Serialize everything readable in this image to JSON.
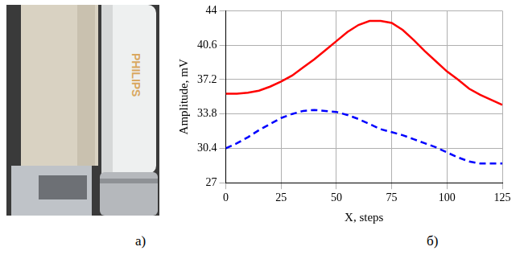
{
  "panel_labels": [
    "а)",
    "б)"
  ],
  "photo": {
    "text": "PHILIPS"
  },
  "chart_data": {
    "type": "line",
    "x_label": "X, steps",
    "y_label": "Amplitude, mV",
    "x": [
      0,
      5,
      10,
      15,
      20,
      25,
      30,
      35,
      40,
      45,
      50,
      55,
      60,
      65,
      70,
      75,
      80,
      85,
      90,
      95,
      100,
      105,
      110,
      115,
      120,
      125
    ],
    "series": [
      {
        "color": "#ff0000",
        "line_style": "solid",
        "marker": "none",
        "values": [
          35.8,
          35.8,
          35.9,
          36.1,
          36.5,
          37.0,
          37.6,
          38.4,
          39.2,
          40.1,
          41.0,
          41.9,
          42.6,
          43.0,
          43.0,
          42.8,
          42.1,
          41.1,
          40.0,
          39.0,
          38.0,
          37.2,
          36.3,
          35.7,
          35.2,
          34.7
        ]
      },
      {
        "color": "#0000ff",
        "line_style": "dashed",
        "marker": "none",
        "values": [
          30.4,
          30.9,
          31.5,
          32.2,
          32.8,
          33.4,
          33.8,
          34.1,
          34.2,
          34.1,
          34.0,
          33.7,
          33.3,
          32.8,
          32.3,
          32.0,
          31.7,
          31.3,
          30.9,
          30.5,
          30.0,
          29.5,
          29.1,
          28.9,
          28.9,
          28.9
        ]
      }
    ],
    "xlim": [
      0,
      125
    ],
    "xticks": [
      0,
      25,
      50,
      75,
      100,
      125
    ],
    "ylim": [
      27,
      44
    ],
    "yticks": [
      27,
      30.4,
      33.8,
      37.2,
      40.6,
      44
    ],
    "grid": true
  }
}
